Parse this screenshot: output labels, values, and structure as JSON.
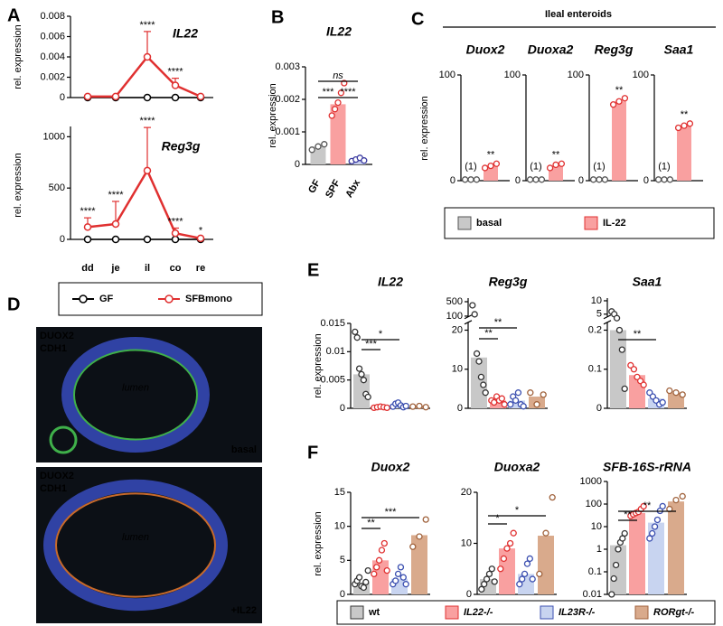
{
  "chart_data": [
    {
      "type": "line",
      "panel_label": "A",
      "title": "IL22",
      "ylabel": "rel. expression",
      "ylim": [
        0,
        0.008
      ],
      "yticks": [
        0,
        0.002,
        0.004,
        0.006,
        0.008
      ],
      "series": [
        {
          "name": "GF",
          "color": "#000000",
          "values": [
            0,
            0,
            0,
            0,
            0
          ]
        },
        {
          "name": "SFBmono",
          "color": "#e03030",
          "values": [
            0.0001,
            0.0001,
            0.004,
            0.0012,
            0.0001
          ],
          "errors": [
            0.0001,
            0.0001,
            0.0025,
            0.0007,
            0.0001
          ]
        }
      ],
      "annotations": [
        "****",
        "****"
      ]
    },
    {
      "type": "line",
      "title": "Reg3g",
      "ylabel": "rel. expression",
      "categories": [
        "dd",
        "je",
        "il",
        "co",
        "re"
      ],
      "ylim": [
        0,
        1100
      ],
      "yticks": [
        0,
        500,
        1000
      ],
      "series": [
        {
          "color": "#000000",
          "values": [
            0,
            0,
            0,
            0,
            0
          ]
        },
        {
          "color": "#e03030",
          "values": [
            120,
            150,
            670,
            60,
            10
          ],
          "errors": [
            90,
            220,
            420,
            50,
            10
          ]
        }
      ],
      "annotations": [
        "****",
        "****",
        "****",
        "****",
        "*"
      ]
    },
    {
      "type": "bar",
      "panel_label": "B",
      "title": "IL22",
      "ylabel": "rel. expression",
      "categories": [
        "GF",
        "SPF",
        "Abx"
      ],
      "category_colors": [
        "#000000",
        "#e03030",
        "#3a3aa0"
      ],
      "colors": [
        "#c8c8c8",
        "#f9a0a0",
        "#c8d0ee"
      ],
      "edge_colors": [
        "#555555",
        "#e03030",
        "#3a3aa0"
      ],
      "values": [
        0.00055,
        0.00185,
        0.00015
      ],
      "points": [
        [
          0.00045,
          0.00055,
          0.00062
        ],
        [
          0.0015,
          0.0017,
          0.0019,
          0.0022,
          0.0025
        ],
        [
          0.0001,
          0.00015,
          0.0002,
          0.00012
        ]
      ],
      "ylim": [
        0,
        0.003
      ],
      "yticks": [
        0,
        0.001,
        0.002,
        0.003
      ],
      "annotations": [
        "***",
        "****",
        "ns"
      ]
    },
    {
      "type": "bar",
      "panel_label": "C",
      "group_title": "Ileal enteroids",
      "title": "Duox2",
      "ylabel": "rel. expression",
      "colors": [
        "#c8c8c8",
        "#f9a0a0"
      ],
      "edge_colors": [
        "#555555",
        "#e03030"
      ],
      "values": [
        1,
        14
      ],
      "points": [
        [
          1,
          1,
          1
        ],
        [
          12,
          14,
          16
        ]
      ],
      "ylim": [
        0,
        100
      ],
      "yticks": [
        0,
        100
      ],
      "annotations": [
        "(1)",
        "**"
      ],
      "legend": [
        {
          "name": "basal",
          "color": "#c8c8c8"
        },
        {
          "name": "IL-22",
          "color": "#f9a0a0"
        }
      ]
    },
    {
      "type": "bar",
      "title": "Duoxa2",
      "colors": [
        "#c8c8c8",
        "#f9a0a0"
      ],
      "edge_colors": [
        "#555555",
        "#e03030"
      ],
      "values": [
        1,
        14
      ],
      "points": [
        [
          1,
          1,
          1
        ],
        [
          12,
          15,
          16
        ]
      ],
      "ylim": [
        0,
        100
      ],
      "yticks": [
        0,
        100
      ],
      "annotations": [
        "(1)",
        "**"
      ]
    },
    {
      "type": "bar",
      "title": "Reg3g",
      "colors": [
        "#c8c8c8",
        "#f9a0a0"
      ],
      "edge_colors": [
        "#555555",
        "#e03030"
      ],
      "values": [
        1,
        75
      ],
      "points": [
        [
          1,
          1,
          1
        ],
        [
          72,
          75,
          78
        ]
      ],
      "ylim": [
        0,
        100
      ],
      "yticks": [
        0,
        100
      ],
      "annotations": [
        "(1)",
        "**"
      ]
    },
    {
      "type": "bar",
      "title": "Saa1",
      "colors": [
        "#c8c8c8",
        "#f9a0a0"
      ],
      "edge_colors": [
        "#555555",
        "#e03030"
      ],
      "values": [
        1,
        52
      ],
      "points": [
        [
          1,
          1,
          1
        ],
        [
          50,
          52,
          54
        ]
      ],
      "ylim": [
        0,
        100
      ],
      "yticks": [
        0,
        100
      ],
      "annotations": [
        "(1)",
        "**"
      ]
    },
    {
      "type": "bar",
      "panel_label": "E",
      "title": "IL22",
      "ylabel": "rel. expression",
      "colors": [
        "#c8c8c8",
        "#f9a0a0",
        "#c8d4f0",
        "#d9aa8c"
      ],
      "edge_colors": [
        "#333333",
        "#e03030",
        "#3b4fb0",
        "#a0623c"
      ],
      "values": [
        0.006,
        0.0002,
        0.0005,
        0.0003
      ],
      "points": [
        [
          0.0135,
          0.0125,
          0.007,
          0.006,
          0.005,
          0.0025,
          0.002
        ],
        [
          0.0001,
          0.0002,
          0.0003,
          0.0002,
          0.0001
        ],
        [
          0.0003,
          0.0008,
          0.001,
          0.0005,
          0.0002,
          0.0004
        ],
        [
          0.0003,
          0.0004,
          0.0002
        ]
      ],
      "ylim": [
        0,
        0.015
      ],
      "yticks": [
        0,
        0.005,
        0.01,
        0.015
      ],
      "annotations": [
        "***",
        "*"
      ]
    },
    {
      "type": "bar",
      "title": "Reg3g",
      "colors": [
        "#c8c8c8",
        "#f9a0a0",
        "#c8d4f0",
        "#d9aa8c"
      ],
      "edge_colors": [
        "#333333",
        "#e03030",
        "#3b4fb0",
        "#a0623c"
      ],
      "values": [
        13,
        2,
        2,
        3
      ],
      "points": [
        [
          400,
          150,
          14,
          12,
          8,
          6,
          4
        ],
        [
          2,
          1.5,
          3,
          2,
          2.5,
          1
        ],
        [
          1,
          3,
          2,
          4,
          1,
          0.5
        ],
        [
          4,
          1,
          3.5
        ]
      ],
      "ylim": [
        0,
        600
      ],
      "ybreak": [
        22,
        80
      ],
      "yticks": [
        0,
        10,
        20,
        100,
        500
      ],
      "annotations": [
        "**",
        "**"
      ]
    },
    {
      "type": "bar",
      "title": "Saa1",
      "colors": [
        "#c8c8c8",
        "#f9a0a0",
        "#c8d4f0",
        "#d9aa8c"
      ],
      "edge_colors": [
        "#333333",
        "#e03030",
        "#3b4fb0",
        "#a0623c"
      ],
      "values": [
        0.2,
        0.085,
        0.025,
        0.04
      ],
      "points": [
        [
          6,
          5,
          3.5,
          0.2,
          0.15,
          0.05
        ],
        [
          0.11,
          0.1,
          0.08,
          0.07,
          0.06
        ],
        [
          0.04,
          0.03,
          0.02,
          0.01,
          0.015
        ],
        [
          0.045,
          0.04,
          0.035
        ]
      ],
      "ylim": [
        0,
        11
      ],
      "ybreak": [
        0.22,
        4
      ],
      "yticks": [
        0,
        0.1,
        0.2,
        5,
        10
      ],
      "annotations": [
        "**"
      ]
    },
    {
      "type": "bar",
      "panel_label": "F",
      "title": "Duox2",
      "ylabel": "rel. expression",
      "colors": [
        "#c8c8c8",
        "#f9a0a0",
        "#c8d4f0",
        "#d9aa8c"
      ],
      "edge_colors": [
        "#333333",
        "#e03030",
        "#3b4fb0",
        "#a0623c"
      ],
      "values": [
        1.7,
        5,
        2.3,
        8.7
      ],
      "points": [
        [
          1.5,
          2,
          2.5,
          1.2,
          1,
          1.8,
          3.5
        ],
        [
          3,
          4,
          5,
          6.5,
          7.5,
          3.5
        ],
        [
          1.5,
          2,
          3,
          4,
          2.5,
          1.5
        ],
        [
          7,
          8.5,
          11
        ]
      ],
      "ylim": [
        0,
        15
      ],
      "yticks": [
        0,
        5,
        10,
        15
      ],
      "annotations": [
        "**",
        "***"
      ],
      "legend": [
        {
          "name": "wt",
          "color": "#c8c8c8",
          "text_color": "#000000"
        },
        {
          "name": "IL22-/-",
          "color": "#f9a0a0",
          "text_color": "#e03030"
        },
        {
          "name": "IL23R-/-",
          "color": "#c8d4f0",
          "text_color": "#3b4fb0"
        },
        {
          "name": "RORgt-/-",
          "color": "#d9aa8c",
          "text_color": "#a0623c"
        }
      ]
    },
    {
      "type": "bar",
      "title": "Duoxa2",
      "colors": [
        "#c8c8c8",
        "#f9a0a0",
        "#c8d4f0",
        "#d9aa8c"
      ],
      "edge_colors": [
        "#333333",
        "#e03030",
        "#3b4fb0",
        "#a0623c"
      ],
      "values": [
        3,
        9,
        4,
        11.5
      ],
      "points": [
        [
          1,
          2,
          3,
          4,
          5,
          2.5
        ],
        [
          5,
          7,
          9,
          10,
          12
        ],
        [
          2,
          3,
          4,
          6,
          7,
          3
        ],
        [
          4,
          12,
          19
        ]
      ],
      "ylim": [
        0,
        20
      ],
      "yticks": [
        0,
        10,
        20
      ],
      "annotations": [
        "*",
        "*"
      ]
    },
    {
      "type": "bar",
      "title": "SFB-16S-rRNA",
      "yscale": "log",
      "colors": [
        "#c8c8c8",
        "#f9a0a0",
        "#c8d4f0",
        "#d9aa8c"
      ],
      "edge_colors": [
        "#333333",
        "#e03030",
        "#3b4fb0",
        "#a0623c"
      ],
      "values": [
        1.5,
        40,
        15,
        130
      ],
      "points": [
        [
          0.01,
          0.05,
          0.2,
          1,
          2,
          3,
          5
        ],
        [
          30,
          35,
          40,
          45,
          60,
          80
        ],
        [
          3,
          5,
          10,
          20,
          50,
          80
        ],
        [
          60,
          150,
          220
        ]
      ],
      "ylim": [
        0.01,
        1000
      ],
      "yticks": [
        0.01,
        0.1,
        1,
        10,
        100,
        1000
      ],
      "annotations": [
        "**",
        "**"
      ]
    }
  ],
  "panel_d": {
    "label": "D",
    "images": [
      {
        "stains": [
          "DUOX2",
          "CDH1"
        ],
        "region": "lumen",
        "condition": "basal"
      },
      {
        "stains": [
          "DUOX2",
          "CDH1"
        ],
        "region": "lumen",
        "condition": "+IL22"
      }
    ]
  }
}
